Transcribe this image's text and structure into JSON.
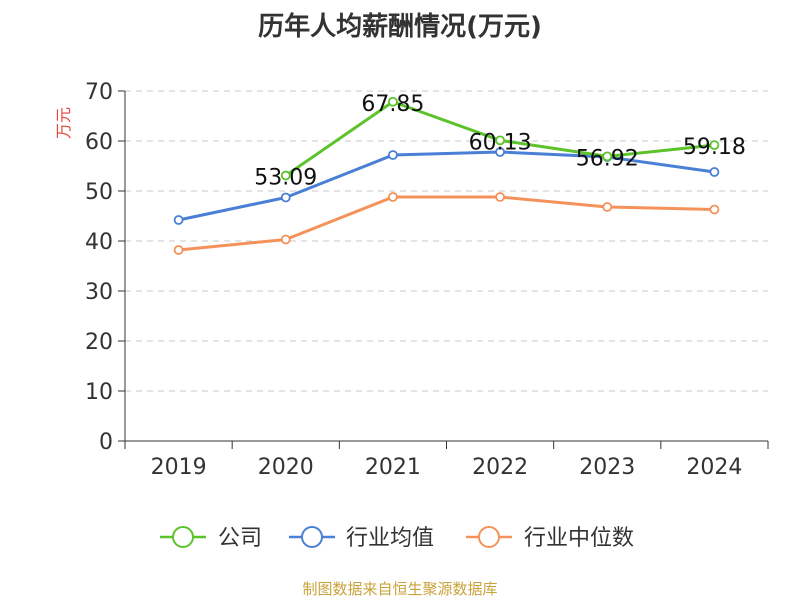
{
  "chart_data": {
    "type": "line",
    "title": "历年人均薪酬情况(万元)",
    "ylabel": "万元",
    "xlabel": "",
    "categories": [
      "2019",
      "2020",
      "2021",
      "2022",
      "2023",
      "2024"
    ],
    "ylim": [
      0,
      70
    ],
    "yticks": [
      0,
      10,
      20,
      30,
      40,
      50,
      60,
      70
    ],
    "grid": true,
    "legend_position": "bottom",
    "series": [
      {
        "name": "公司",
        "color": "#5cc32b",
        "values": [
          null,
          53.09,
          67.85,
          60.13,
          56.92,
          59.18
        ],
        "labels": [
          "",
          "53.09",
          "67.85",
          "60.13",
          "56.92",
          "59.18"
        ]
      },
      {
        "name": "行业均值",
        "color": "#4a7fd6",
        "values": [
          44.2,
          48.7,
          57.2,
          57.8,
          56.8,
          53.8
        ]
      },
      {
        "name": "行业中位数",
        "color": "#f4925a",
        "values": [
          38.2,
          40.3,
          48.8,
          48.8,
          46.8,
          46.3
        ]
      }
    ]
  },
  "source_note": "制图数据来自恒生聚源数据库"
}
